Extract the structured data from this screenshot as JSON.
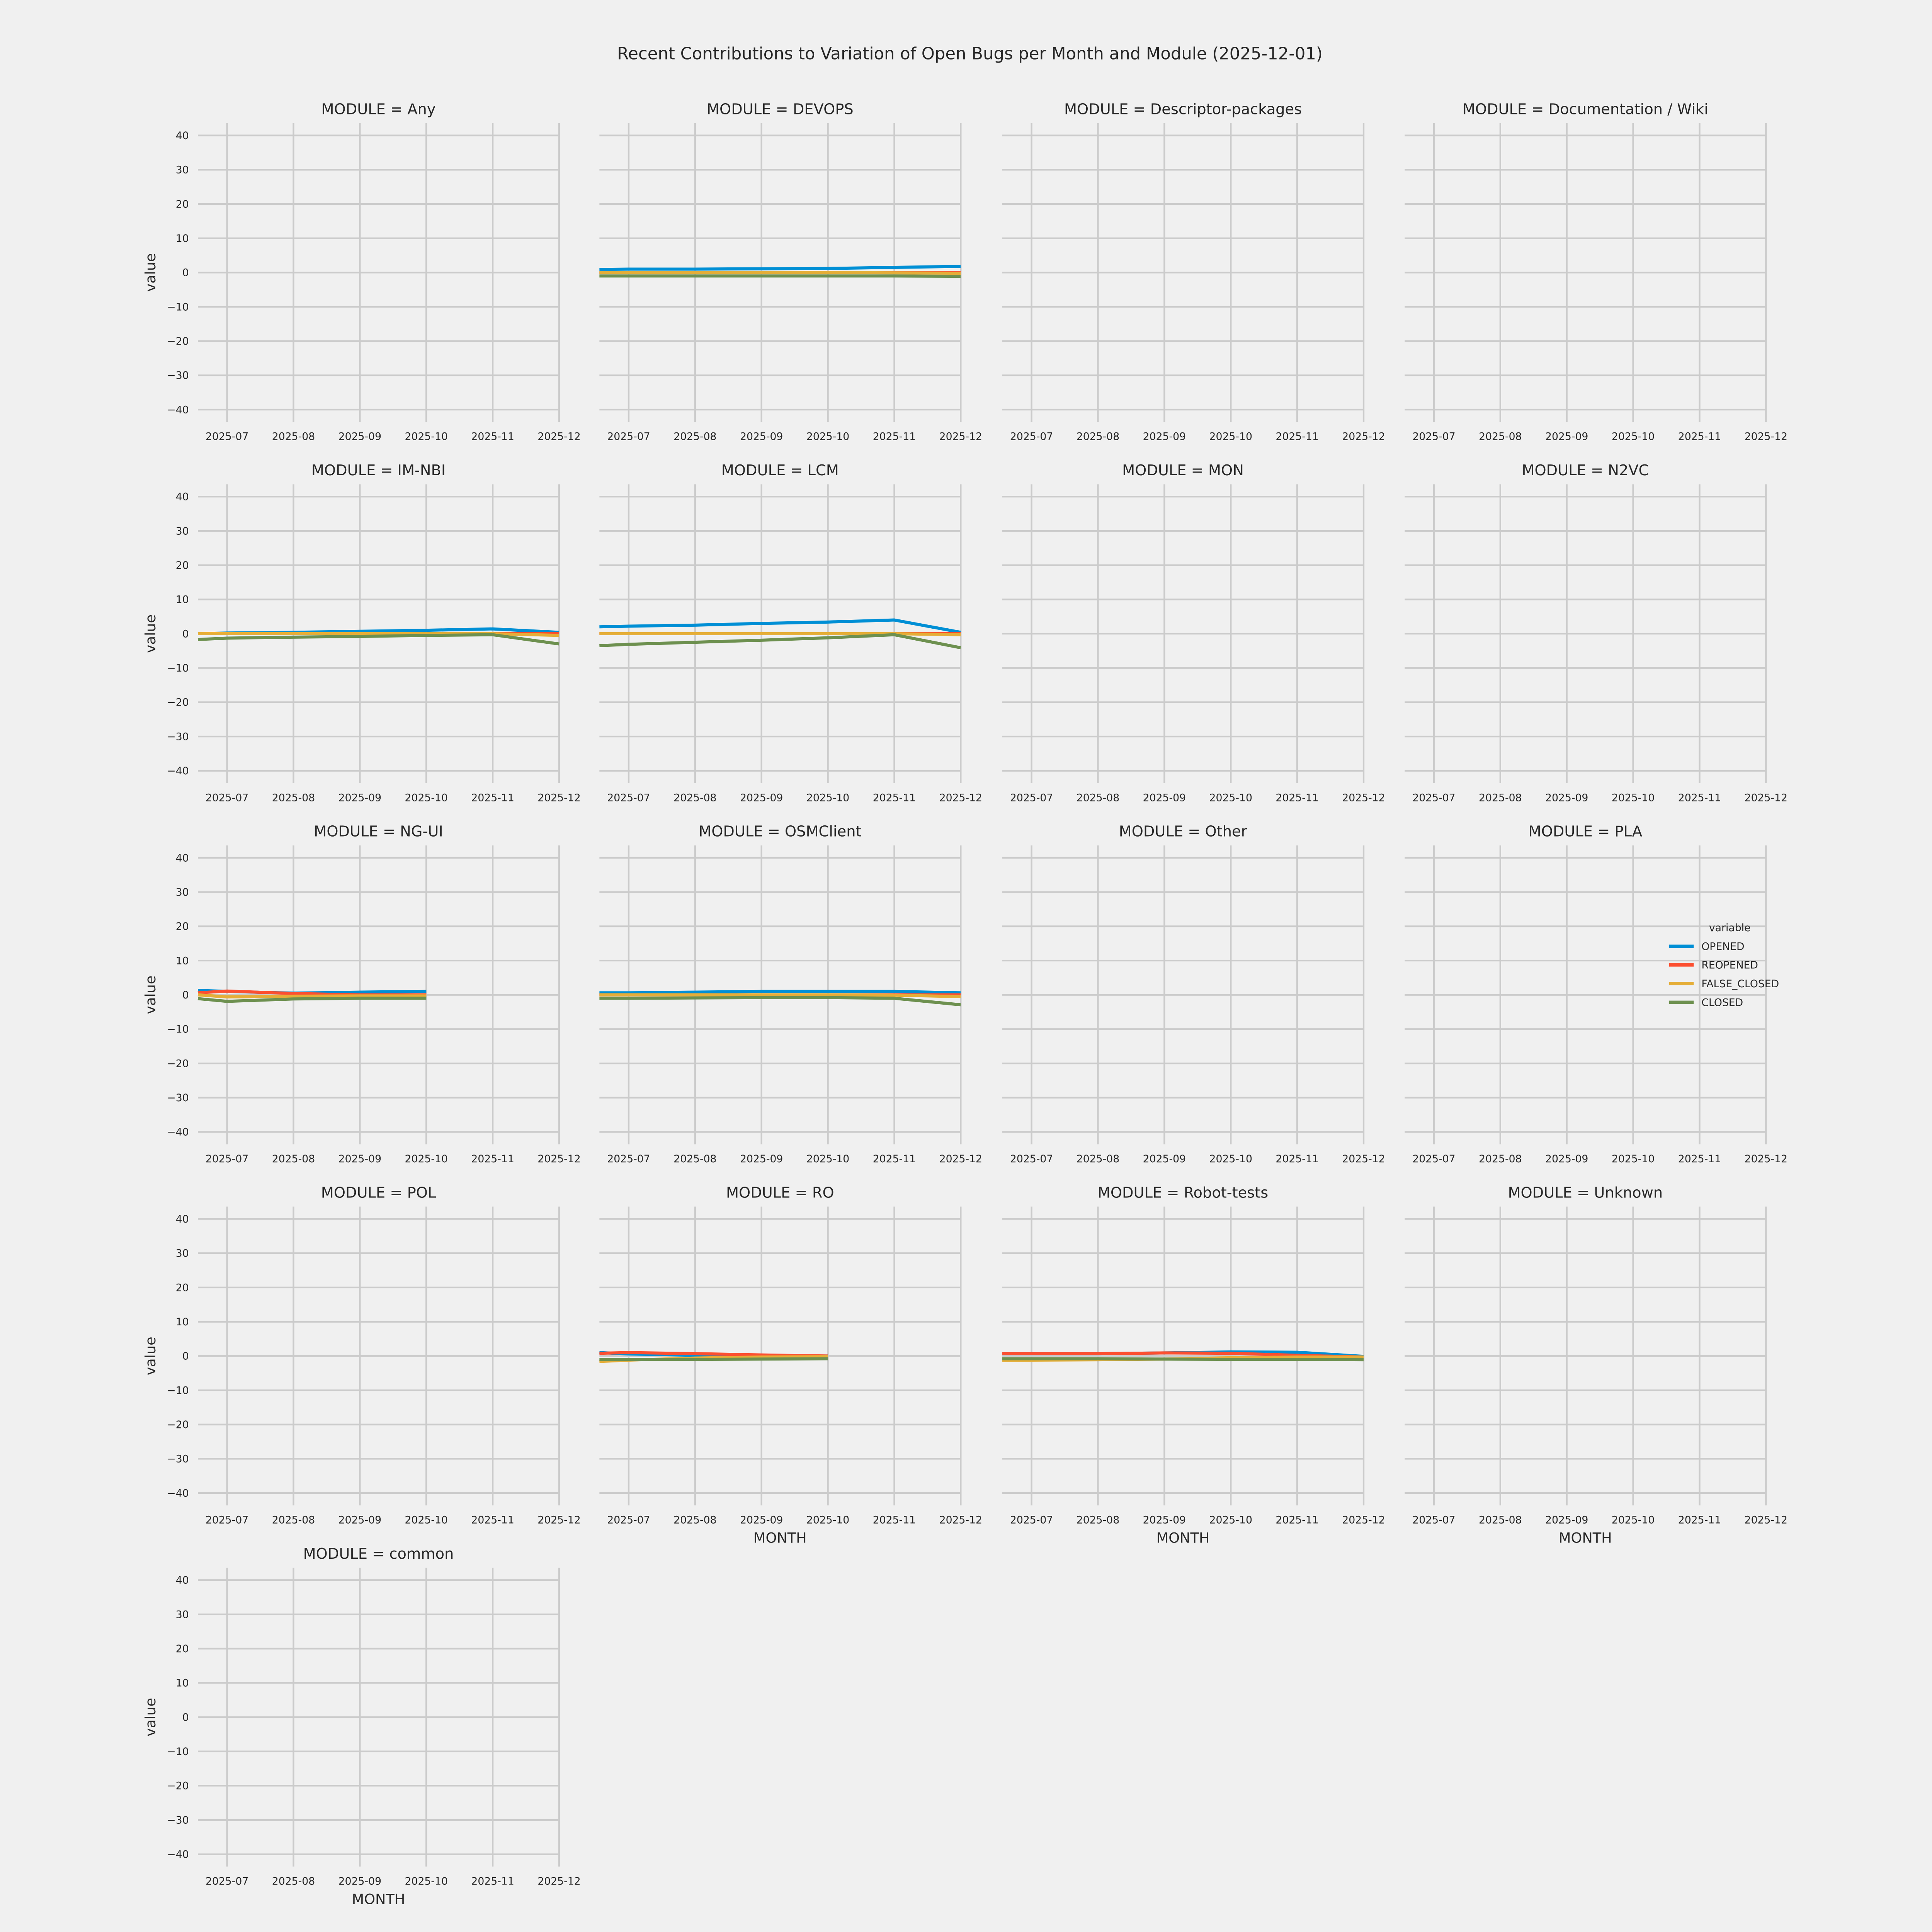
{
  "title": "Recent Contributions to Variation of Open Bugs per Month and Module (2025-12-01)",
  "style": {
    "background": "#f0f0f0",
    "grid_color": "#cbcbcb",
    "text_color": "#262626"
  },
  "axes": {
    "xlabel": "MONTH",
    "ylabel": "value",
    "y_tick_values": [
      -40,
      -30,
      -20,
      -10,
      0,
      10,
      20,
      30,
      40
    ]
  },
  "legend": {
    "title": "variable",
    "entries": [
      {
        "label": "OPENED",
        "color": "#008fd5"
      },
      {
        "label": "REOPENED",
        "color": "#fc4f30"
      },
      {
        "label": "FALSE_CLOSED",
        "color": "#e5ae38"
      },
      {
        "label": "CLOSED",
        "color": "#6d904f"
      }
    ]
  },
  "chart_data": {
    "type": "line",
    "x_months": [
      "2025-07",
      "2025-08",
      "2025-09",
      "2025-10",
      "2025-11",
      "2025-12"
    ],
    "x_axis_start_offset": -0.44,
    "ylim": [
      -43.6,
      43.6
    ],
    "facets": [
      {
        "title": "MODULE = Any",
        "series": []
      },
      {
        "title": "MODULE = DEVOPS",
        "series": [
          {
            "name": "OPENED",
            "x": [
              -0.44,
              0,
              1,
              2,
              3,
              4,
              5
            ],
            "y": [
              0.9,
              1,
              1,
              1.1,
              1.2,
              1.5,
              1.8
            ]
          },
          {
            "name": "REOPENED",
            "x": [
              -0.44,
              0,
              1,
              2,
              3,
              4,
              5
            ],
            "y": [
              0,
              0,
              0,
              0,
              0,
              0,
              0
            ]
          },
          {
            "name": "FALSE_CLOSED",
            "x": [
              -0.44,
              0,
              1,
              2,
              3,
              4,
              5
            ],
            "y": [
              0,
              0,
              0,
              0,
              0,
              -0.1,
              -0.2
            ]
          },
          {
            "name": "CLOSED",
            "x": [
              -0.44,
              0,
              1,
              2,
              3,
              4,
              5
            ],
            "y": [
              -1,
              -1,
              -1,
              -1,
              -1,
              -1,
              -1.1
            ]
          }
        ]
      },
      {
        "title": "MODULE = Descriptor-packages",
        "series": []
      },
      {
        "title": "MODULE = Documentation / Wiki",
        "series": []
      },
      {
        "title": "MODULE = IM-NBI",
        "series": [
          {
            "name": "OPENED",
            "x": [
              -0.44,
              0,
              1,
              2,
              3,
              4,
              5
            ],
            "y": [
              0,
              0.2,
              0.4,
              0.7,
              1,
              1.4,
              0.4
            ]
          },
          {
            "name": "REOPENED",
            "x": [
              -0.44,
              0,
              1,
              2,
              3,
              4,
              5
            ],
            "y": [
              0,
              0,
              0,
              0,
              0,
              0,
              0
            ]
          },
          {
            "name": "FALSE_CLOSED",
            "x": [
              -0.44,
              0,
              1,
              2,
              3,
              4,
              5
            ],
            "y": [
              0,
              0,
              0,
              0,
              0,
              0,
              -0.5
            ]
          },
          {
            "name": "CLOSED",
            "x": [
              -0.44,
              0,
              1,
              2,
              3,
              4,
              5
            ],
            "y": [
              -1.7,
              -1.3,
              -1,
              -0.8,
              -0.5,
              -0.3,
              -3
            ]
          }
        ]
      },
      {
        "title": "MODULE = LCM",
        "series": [
          {
            "name": "OPENED",
            "x": [
              -0.44,
              0,
              1,
              2,
              3,
              4,
              5
            ],
            "y": [
              2,
              2.2,
              2.5,
              3,
              3.4,
              4,
              0.4
            ]
          },
          {
            "name": "REOPENED",
            "x": [
              -0.44,
              0,
              1,
              2,
              3,
              4,
              5
            ],
            "y": [
              0,
              0,
              0,
              0,
              0,
              0,
              0
            ]
          },
          {
            "name": "FALSE_CLOSED",
            "x": [
              -0.44,
              0,
              1,
              2,
              3,
              4,
              5
            ],
            "y": [
              0,
              0,
              0,
              0,
              0,
              0,
              -0.3
            ]
          },
          {
            "name": "CLOSED",
            "x": [
              -0.44,
              0,
              1,
              2,
              3,
              4,
              5
            ],
            "y": [
              -3.5,
              -3.1,
              -2.5,
              -1.9,
              -1.2,
              -0.3,
              -4.1
            ]
          }
        ]
      },
      {
        "title": "MODULE = MON",
        "series": []
      },
      {
        "title": "MODULE = N2VC",
        "series": []
      },
      {
        "title": "MODULE = NG-UI",
        "series": [
          {
            "name": "OPENED",
            "x": [
              -0.44,
              0,
              1,
              2,
              3
            ],
            "y": [
              1.3,
              1,
              0.5,
              0.8,
              1
            ]
          },
          {
            "name": "REOPENED",
            "x": [
              -0.44,
              0,
              1,
              2,
              3
            ],
            "y": [
              0.6,
              1.1,
              0.4,
              0,
              0
            ]
          },
          {
            "name": "FALSE_CLOSED",
            "x": [
              -0.44,
              0,
              1,
              2,
              3
            ],
            "y": [
              0,
              -0.6,
              -0.4,
              -0.3,
              -0.3
            ]
          },
          {
            "name": "CLOSED",
            "x": [
              -0.44,
              0,
              1,
              2,
              3
            ],
            "y": [
              -1.1,
              -1.9,
              -1.2,
              -1,
              -1
            ]
          }
        ]
      },
      {
        "title": "MODULE = OSMClient",
        "series": [
          {
            "name": "OPENED",
            "x": [
              -0.44,
              0,
              1,
              2,
              3,
              4,
              5
            ],
            "y": [
              0.6,
              0.6,
              0.8,
              1,
              1,
              1,
              0.6
            ]
          },
          {
            "name": "REOPENED",
            "x": [
              -0.44,
              0,
              1,
              2,
              3,
              4,
              5
            ],
            "y": [
              0,
              0,
              0,
              0,
              0,
              0,
              0
            ]
          },
          {
            "name": "FALSE_CLOSED",
            "x": [
              -0.44,
              0,
              1,
              2,
              3,
              4,
              5
            ],
            "y": [
              0,
              0,
              0,
              0,
              0,
              -0.1,
              -0.5
            ]
          },
          {
            "name": "CLOSED",
            "x": [
              -0.44,
              0,
              1,
              2,
              3,
              4,
              5
            ],
            "y": [
              -1,
              -1,
              -0.9,
              -0.8,
              -0.8,
              -1,
              -2.9
            ]
          }
        ]
      },
      {
        "title": "MODULE = Other",
        "series": []
      },
      {
        "title": "MODULE = PLA",
        "series": []
      },
      {
        "title": "MODULE = POL",
        "series": []
      },
      {
        "title": "MODULE = RO",
        "series": [
          {
            "name": "OPENED",
            "x": [
              -0.44,
              0,
              1,
              2,
              3
            ],
            "y": [
              1,
              0.6,
              0.2,
              0,
              0
            ]
          },
          {
            "name": "REOPENED",
            "x": [
              -0.44,
              0,
              1,
              2,
              3
            ],
            "y": [
              0.8,
              1,
              0.7,
              0.3,
              0
            ]
          },
          {
            "name": "FALSE_CLOSED",
            "x": [
              -0.44,
              0,
              1,
              2,
              3
            ],
            "y": [
              -1.6,
              -1.2,
              -0.6,
              -0.3,
              -0.2
            ]
          },
          {
            "name": "CLOSED",
            "x": [
              -0.44,
              0,
              1,
              2,
              3
            ],
            "y": [
              -1,
              -1,
              -1,
              -0.9,
              -0.8
            ]
          }
        ]
      },
      {
        "title": "MODULE = Robot-tests",
        "series": [
          {
            "name": "OPENED",
            "x": [
              -0.44,
              0,
              1,
              2,
              3,
              4,
              5
            ],
            "y": [
              0.7,
              0.7,
              0.7,
              0.9,
              1.2,
              1.1,
              -0.1
            ]
          },
          {
            "name": "REOPENED",
            "x": [
              -0.44,
              0,
              1,
              2,
              3,
              4,
              5
            ],
            "y": [
              0.7,
              0.7,
              0.7,
              0.9,
              0.8,
              0.2,
              -0.3
            ]
          },
          {
            "name": "FALSE_CLOSED",
            "x": [
              -0.44,
              0,
              1,
              2,
              3,
              4,
              5
            ],
            "y": [
              -1.3,
              -1.2,
              -1.1,
              -0.9,
              -0.5,
              -0.3,
              -0.3
            ]
          },
          {
            "name": "CLOSED",
            "x": [
              -0.44,
              0,
              1,
              2,
              3,
              4,
              5
            ],
            "y": [
              -0.8,
              -0.8,
              -0.8,
              -0.9,
              -1,
              -1,
              -1.1
            ]
          }
        ]
      },
      {
        "title": "MODULE = Unknown",
        "series": []
      },
      {
        "title": "MODULE = common",
        "series": []
      }
    ]
  }
}
